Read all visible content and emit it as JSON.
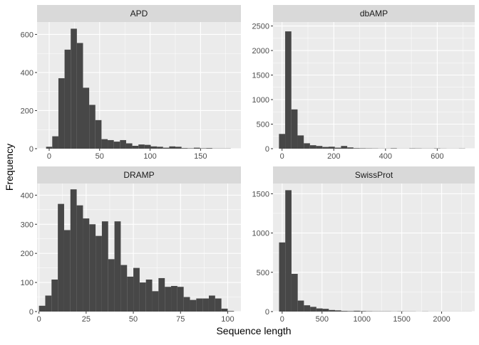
{
  "chart_data": {
    "type": "bar",
    "xlabel": "Sequence length",
    "ylabel": "Frequency",
    "colors": {
      "panel_bg": "#ebebeb",
      "strip_bg": "#d9d9d9",
      "grid": "#ffffff",
      "bar": "#474747"
    },
    "facets": [
      {
        "name": "APD",
        "xlim": [
          -12,
          190
        ],
        "ylim": [
          0,
          665
        ],
        "xticks": [
          0,
          50,
          100,
          150
        ],
        "yticks": [
          0,
          200,
          400,
          600
        ],
        "bin_width": 6.1,
        "bins": [
          {
            "x": 0,
            "y": 10
          },
          {
            "x": 6.1,
            "y": 65
          },
          {
            "x": 12.2,
            "y": 370
          },
          {
            "x": 18.3,
            "y": 520
          },
          {
            "x": 24.4,
            "y": 630
          },
          {
            "x": 30.5,
            "y": 555
          },
          {
            "x": 36.6,
            "y": 320
          },
          {
            "x": 42.7,
            "y": 230
          },
          {
            "x": 48.8,
            "y": 150
          },
          {
            "x": 54.9,
            "y": 50
          },
          {
            "x": 61,
            "y": 45
          },
          {
            "x": 67.1,
            "y": 37
          },
          {
            "x": 73.2,
            "y": 45
          },
          {
            "x": 79.3,
            "y": 28
          },
          {
            "x": 85.4,
            "y": 15
          },
          {
            "x": 91.5,
            "y": 22
          },
          {
            "x": 97.6,
            "y": 20
          },
          {
            "x": 103.7,
            "y": 12
          },
          {
            "x": 109.8,
            "y": 10
          },
          {
            "x": 115.9,
            "y": 5
          },
          {
            "x": 122,
            "y": 12
          },
          {
            "x": 128.1,
            "y": 10
          },
          {
            "x": 134.2,
            "y": 3
          },
          {
            "x": 140.3,
            "y": 2
          },
          {
            "x": 146.4,
            "y": 5
          },
          {
            "x": 152.5,
            "y": 2
          },
          {
            "x": 158.6,
            "y": 3
          },
          {
            "x": 164.7,
            "y": 1
          },
          {
            "x": 170.8,
            "y": 1
          },
          {
            "x": 176.9,
            "y": 1
          }
        ]
      },
      {
        "name": "dbAMP",
        "xlim": [
          -35,
          745
        ],
        "ylim": [
          0,
          2580
        ],
        "xticks": [
          0,
          200,
          400,
          600
        ],
        "yticks": [
          0,
          500,
          1000,
          1500,
          2000,
          2500
        ],
        "bin_width": 24,
        "bins": [
          {
            "x": 0,
            "y": 300
          },
          {
            "x": 24,
            "y": 2390
          },
          {
            "x": 48,
            "y": 800
          },
          {
            "x": 72,
            "y": 270
          },
          {
            "x": 96,
            "y": 110
          },
          {
            "x": 120,
            "y": 70
          },
          {
            "x": 144,
            "y": 55
          },
          {
            "x": 168,
            "y": 35
          },
          {
            "x": 192,
            "y": 40
          },
          {
            "x": 216,
            "y": 20
          },
          {
            "x": 240,
            "y": 55
          },
          {
            "x": 264,
            "y": 25
          },
          {
            "x": 288,
            "y": 10
          },
          {
            "x": 312,
            "y": 8
          },
          {
            "x": 336,
            "y": 6
          },
          {
            "x": 360,
            "y": 5
          },
          {
            "x": 384,
            "y": 3
          },
          {
            "x": 408,
            "y": 3
          },
          {
            "x": 432,
            "y": 8
          },
          {
            "x": 456,
            "y": 2
          },
          {
            "x": 480,
            "y": 2
          },
          {
            "x": 504,
            "y": 6
          },
          {
            "x": 528,
            "y": 5
          },
          {
            "x": 552,
            "y": 3
          },
          {
            "x": 576,
            "y": 3
          },
          {
            "x": 600,
            "y": 6
          },
          {
            "x": 624,
            "y": 3
          },
          {
            "x": 648,
            "y": 2
          },
          {
            "x": 672,
            "y": 2
          },
          {
            "x": 696,
            "y": 4
          }
        ]
      },
      {
        "name": "DRAMP",
        "xlim": [
          -1,
          107
        ],
        "ylim": [
          0,
          440
        ],
        "xticks": [
          0,
          25,
          50,
          75,
          100
        ],
        "yticks": [
          0,
          100,
          200,
          300,
          400
        ],
        "bin_width": 3.33,
        "bins": [
          {
            "x": 1.67,
            "y": 20
          },
          {
            "x": 5,
            "y": 55
          },
          {
            "x": 8.33,
            "y": 110
          },
          {
            "x": 11.67,
            "y": 370
          },
          {
            "x": 15,
            "y": 280
          },
          {
            "x": 18.33,
            "y": 420
          },
          {
            "x": 21.67,
            "y": 365
          },
          {
            "x": 25,
            "y": 320
          },
          {
            "x": 28.33,
            "y": 300
          },
          {
            "x": 31.67,
            "y": 260
          },
          {
            "x": 35,
            "y": 310
          },
          {
            "x": 38.33,
            "y": 180
          },
          {
            "x": 41.67,
            "y": 310
          },
          {
            "x": 45,
            "y": 160
          },
          {
            "x": 48.33,
            "y": 120
          },
          {
            "x": 51.67,
            "y": 150
          },
          {
            "x": 55,
            "y": 100
          },
          {
            "x": 58.33,
            "y": 110
          },
          {
            "x": 61.67,
            "y": 70
          },
          {
            "x": 65,
            "y": 115
          },
          {
            "x": 68.33,
            "y": 85
          },
          {
            "x": 71.67,
            "y": 88
          },
          {
            "x": 75,
            "y": 85
          },
          {
            "x": 78.33,
            "y": 50
          },
          {
            "x": 81.67,
            "y": 40
          },
          {
            "x": 85,
            "y": 45
          },
          {
            "x": 88.33,
            "y": 45
          },
          {
            "x": 91.67,
            "y": 55
          },
          {
            "x": 95,
            "y": 45
          },
          {
            "x": 98.33,
            "y": 10
          },
          {
            "x": 101.67,
            "y": 2
          }
        ]
      },
      {
        "name": "SwissProt",
        "xlim": [
          -115,
          2415
        ],
        "ylim": [
          0,
          1630
        ],
        "xticks": [
          0,
          500,
          1000,
          1500,
          2000
        ],
        "yticks": [
          0,
          500,
          1000,
          1500
        ],
        "bin_width": 78,
        "bins": [
          {
            "x": 0,
            "y": 880
          },
          {
            "x": 78,
            "y": 1545
          },
          {
            "x": 156,
            "y": 480
          },
          {
            "x": 234,
            "y": 140
          },
          {
            "x": 312,
            "y": 80
          },
          {
            "x": 390,
            "y": 60
          },
          {
            "x": 468,
            "y": 40
          },
          {
            "x": 546,
            "y": 35
          },
          {
            "x": 624,
            "y": 20
          },
          {
            "x": 702,
            "y": 15
          },
          {
            "x": 780,
            "y": 8
          },
          {
            "x": 858,
            "y": 6
          },
          {
            "x": 936,
            "y": 10
          },
          {
            "x": 1014,
            "y": 6
          },
          {
            "x": 1092,
            "y": 4
          },
          {
            "x": 1170,
            "y": 3
          },
          {
            "x": 1248,
            "y": 3
          },
          {
            "x": 1326,
            "y": 3
          },
          {
            "x": 1404,
            "y": 2
          },
          {
            "x": 1482,
            "y": 3
          },
          {
            "x": 1560,
            "y": 2
          },
          {
            "x": 1638,
            "y": 2
          },
          {
            "x": 1716,
            "y": 1
          },
          {
            "x": 1794,
            "y": 2
          },
          {
            "x": 1872,
            "y": 1
          },
          {
            "x": 1950,
            "y": 1
          },
          {
            "x": 2028,
            "y": 1
          },
          {
            "x": 2106,
            "y": 1
          },
          {
            "x": 2184,
            "y": 1
          },
          {
            "x": 2262,
            "y": 1
          },
          {
            "x": 2340,
            "y": 1
          }
        ]
      }
    ]
  }
}
